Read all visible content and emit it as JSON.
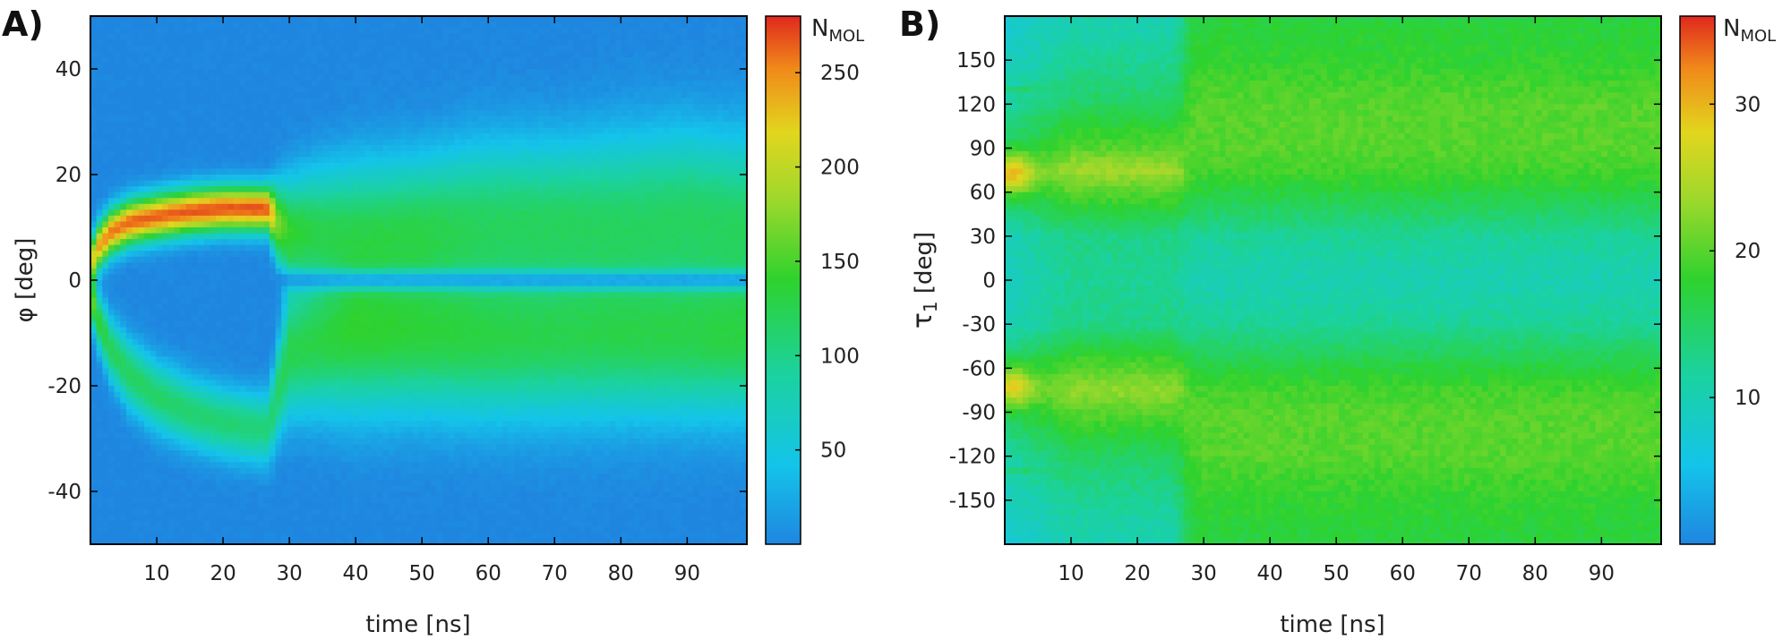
{
  "chart_data": [
    {
      "type": "heatmap",
      "panel_label": "A)",
      "xlabel": "time [ns]",
      "ylabel": "φ [deg]",
      "xlim": [
        0,
        99
      ],
      "ylim": [
        -50,
        50
      ],
      "x_ticks": [
        10,
        20,
        30,
        40,
        50,
        60,
        70,
        80,
        90
      ],
      "y_ticks": [
        -40,
        -20,
        0,
        20,
        40
      ],
      "colorbar": {
        "title_main": "N",
        "title_sub": "MOL",
        "range": [
          0,
          280
        ],
        "ticks": [
          50,
          100,
          150,
          200,
          250
        ]
      },
      "ridges": [
        {
          "name": "upper",
          "x": [
            0,
            1,
            3,
            6,
            10,
            15,
            20,
            25,
            27,
            28,
            30,
            35,
            40,
            50,
            60,
            70,
            80,
            90,
            99
          ],
          "center": [
            3,
            6,
            9,
            11,
            12,
            13,
            13.5,
            13.5,
            13.5,
            11,
            9,
            10,
            10,
            11,
            12,
            12,
            12,
            13,
            12
          ],
          "width": [
            3,
            3,
            3,
            3,
            3,
            3,
            3,
            3,
            3,
            5,
            7,
            8,
            9,
            9,
            10,
            10,
            11,
            11,
            11
          ],
          "peak": [
            190,
            240,
            255,
            262,
            265,
            268,
            268,
            268,
            265,
            175,
            140,
            118,
            112,
            115,
            110,
            112,
            110,
            112,
            110
          ]
        },
        {
          "name": "lower",
          "x": [
            0,
            1,
            3,
            6,
            10,
            15,
            20,
            25,
            27,
            28,
            30,
            35,
            40,
            50,
            60,
            70,
            80,
            90,
            99
          ],
          "center": [
            -3,
            -7,
            -13,
            -18,
            -22,
            -25,
            -27,
            -28,
            -28,
            -22,
            -14,
            -12,
            -11,
            -11,
            -12,
            -12,
            -12,
            -12,
            -12
          ],
          "width": [
            3,
            3.5,
            4,
            4.5,
            4.5,
            4.5,
            4.5,
            4.5,
            4.5,
            6,
            8,
            9,
            10,
            10,
            10,
            10,
            10,
            10,
            10
          ],
          "peak": [
            170,
            140,
            122,
            118,
            115,
            112,
            110,
            108,
            108,
            115,
            125,
            128,
            132,
            128,
            122,
            118,
            115,
            118,
            120
          ]
        }
      ]
    },
    {
      "type": "heatmap",
      "panel_label": "B)",
      "xlabel": "time [ns]",
      "ylabel_main": "τ",
      "ylabel_sub": "1",
      "ylabel_unit": "[deg]",
      "xlim": [
        0,
        99
      ],
      "ylim": [
        -180,
        180
      ],
      "x_ticks": [
        10,
        20,
        30,
        40,
        50,
        60,
        70,
        80,
        90
      ],
      "y_ticks": [
        -150,
        -120,
        -90,
        -60,
        -30,
        0,
        30,
        60,
        90,
        120,
        150
      ],
      "colorbar": {
        "title_main": "N",
        "title_sub": "MOL",
        "range": [
          0,
          36
        ],
        "ticks": [
          10,
          20,
          30
        ]
      },
      "transition_time": 27,
      "profile_before": {
        "tau": [
          -180,
          -150,
          -120,
          -90,
          -75,
          -60,
          -30,
          0,
          30,
          60,
          75,
          90,
          120,
          150,
          180
        ],
        "n": [
          10,
          12,
          15,
          20,
          23,
          20,
          13,
          12,
          13,
          20,
          24,
          20,
          15,
          12,
          10
        ]
      },
      "profile_after": {
        "tau": [
          -180,
          -150,
          -120,
          -90,
          -75,
          -60,
          -30,
          0,
          30,
          60,
          75,
          90,
          120,
          150,
          180
        ],
        "n": [
          17,
          18,
          20,
          20,
          19,
          17,
          12,
          10,
          12,
          17,
          19,
          20,
          20,
          18,
          17
        ]
      },
      "hotspots": [
        {
          "time": 1,
          "tau": 72,
          "n": 34
        },
        {
          "time": 1,
          "tau": -72,
          "n": 33
        }
      ]
    }
  ]
}
